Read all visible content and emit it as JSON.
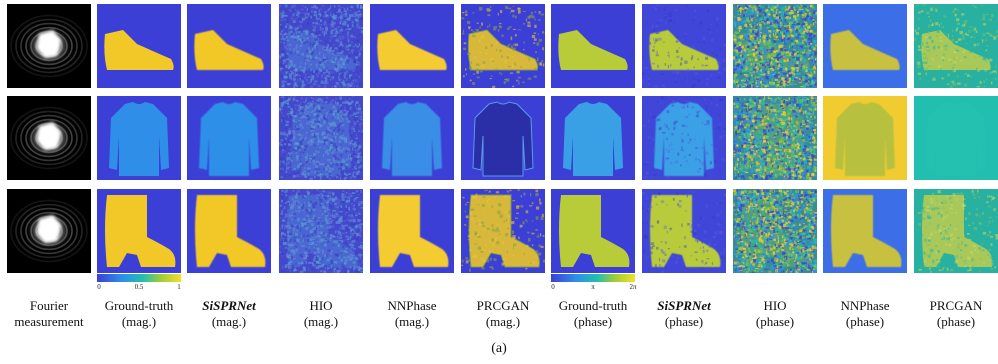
{
  "figure": {
    "columns": [
      {
        "line1": "Fourier",
        "line2": "measurement",
        "emphasis": false
      },
      {
        "line1": "Ground-truth",
        "line2": "(mag.)",
        "emphasis": false
      },
      {
        "line1": "SiSPRNet",
        "line2": "(mag.)",
        "emphasis": true
      },
      {
        "line1": "HIO",
        "line2": "(mag.)",
        "emphasis": false
      },
      {
        "line1": "NNPhase",
        "line2": "(mag.)",
        "emphasis": false
      },
      {
        "line1": "PRCGAN",
        "line2": "(mag.)",
        "emphasis": false
      },
      {
        "line1": "Ground-truth",
        "line2": "(phase)",
        "emphasis": false
      },
      {
        "line1": "SiSPRNet",
        "line2": "(phase)",
        "emphasis": true
      },
      {
        "line1": "HIO",
        "line2": "(phase)",
        "emphasis": false
      },
      {
        "line1": "NNPhase",
        "line2": "(phase)",
        "emphasis": false
      },
      {
        "line1": "PRCGAN",
        "line2": "(phase)",
        "emphasis": false
      }
    ],
    "rows": [
      "shoe",
      "shirt",
      "boot"
    ],
    "colorbars": {
      "magnitude": {
        "ticks": [
          "0",
          "0.5",
          "1"
        ]
      },
      "phase": {
        "ticks": [
          "0",
          "π",
          "2π"
        ]
      }
    },
    "caption": "(a)",
    "colors": {
      "background": "#3c3fd6",
      "object_yellow": "#f2c828",
      "object_blue": "#2f8fe8",
      "teal": "#22bfb0",
      "black": "#000000"
    }
  }
}
